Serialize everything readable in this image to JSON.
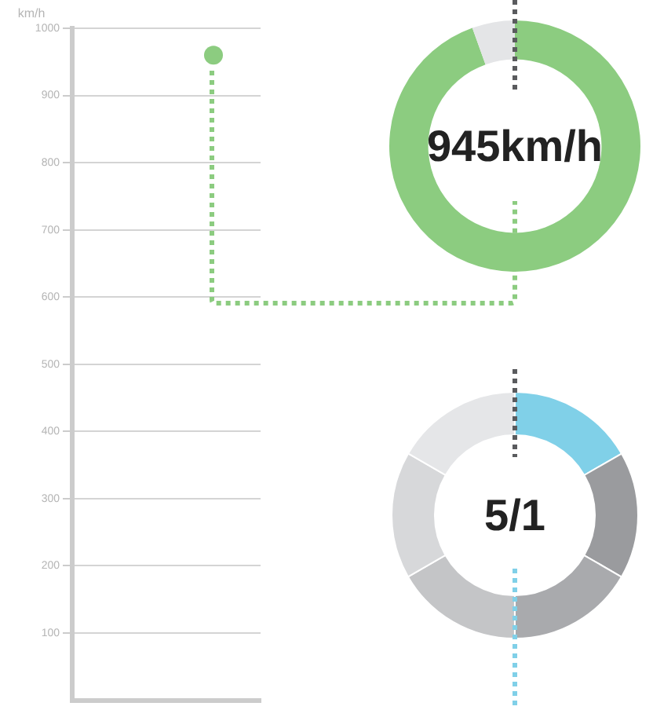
{
  "chart_data": [
    {
      "type": "scatter",
      "ylabel": "km/h",
      "categories": [
        null,
        null
      ],
      "series": [
        {
          "color": "#8ccc80",
          "values": [
            null,
            960
          ]
        }
      ],
      "ylim": [
        0,
        1000
      ],
      "yticks": [
        100,
        200,
        300,
        400,
        500,
        600,
        700,
        800,
        900,
        1000
      ],
      "grid": "y",
      "tick_labels": "y",
      "marker": "circle"
    },
    {
      "type": "donut",
      "categories": [
        null,
        null
      ],
      "values": [
        94.5,
        5.5
      ],
      "colors": [
        "#8ccc80",
        "#e4e5e7"
      ],
      "annotations": [
        "945km/h"
      ]
    },
    {
      "type": "donut",
      "categories": [
        null,
        null,
        null,
        null,
        null,
        null
      ],
      "values": [
        16.67,
        16.67,
        16.67,
        16.67,
        16.66,
        16.66
      ],
      "colors": [
        "#80d0e8",
        "#9a9b9e",
        "#a9aaad",
        "#c4c5c7",
        "#d7d8da",
        "#e5e6e8"
      ],
      "annotations": [
        "5/1"
      ]
    }
  ]
}
